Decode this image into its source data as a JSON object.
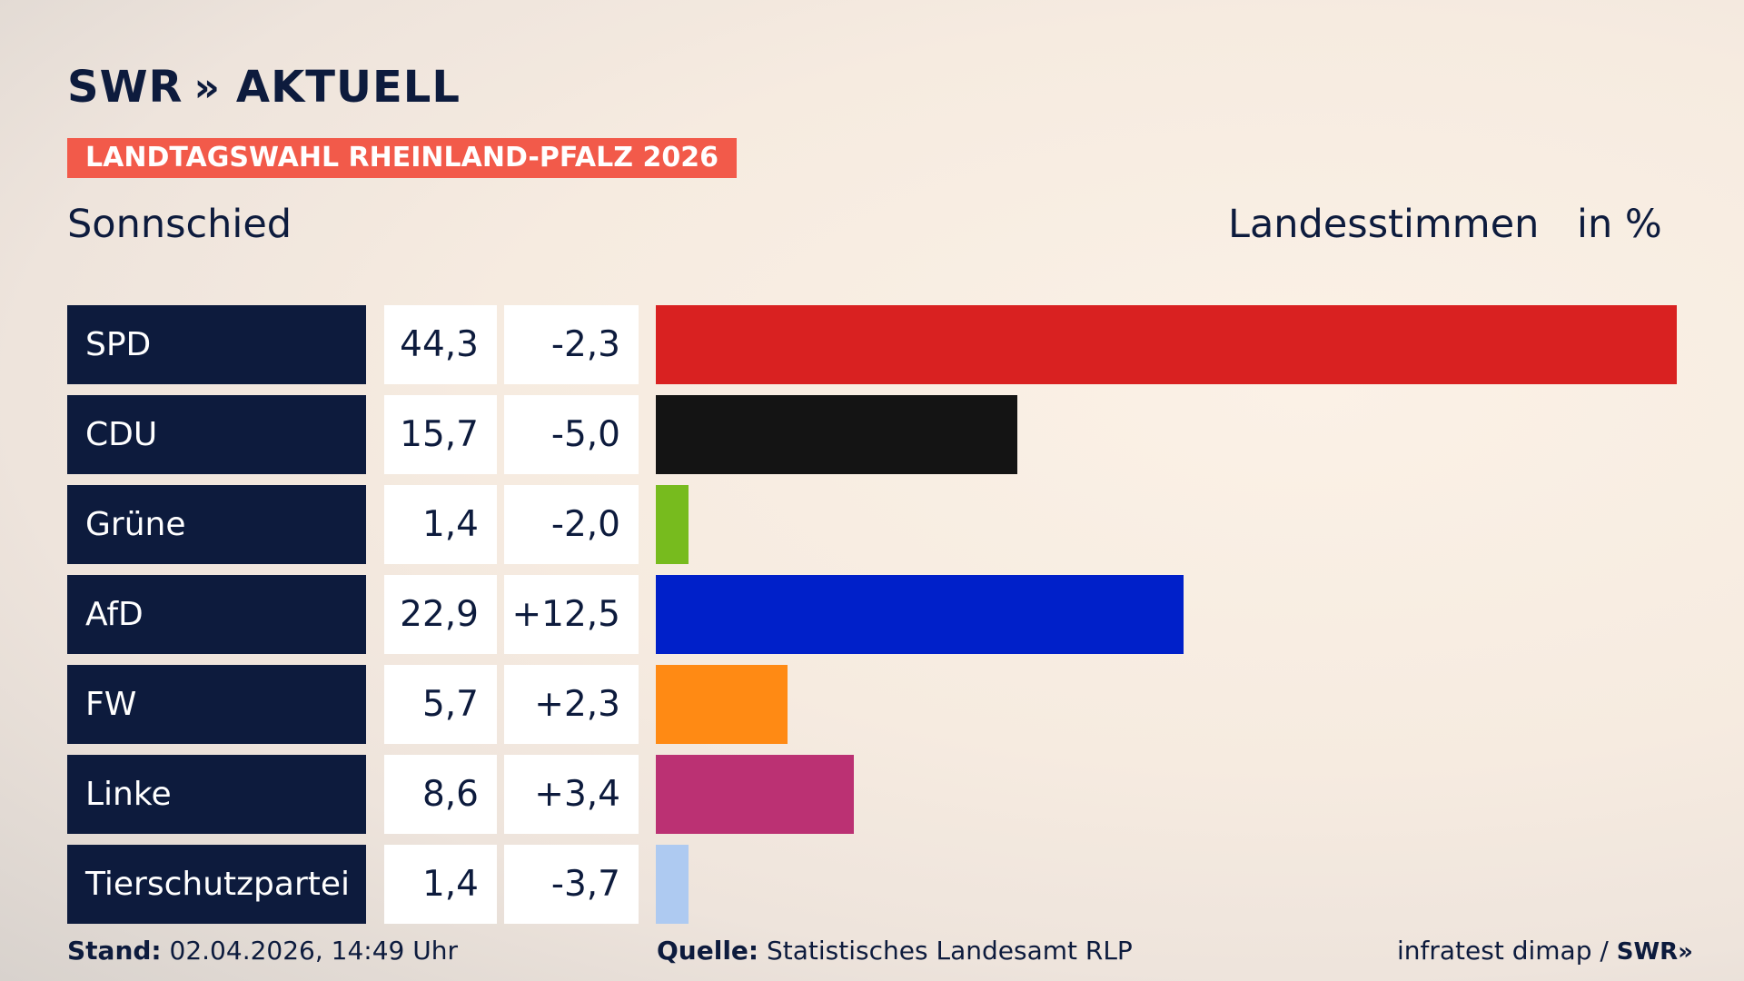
{
  "header": {
    "logo": "SWR",
    "logo_chevrons": "»",
    "logo_suffix": "AKTUELL",
    "kicker": "LANDTAGSWAHL RHEINLAND-PFALZ 2026",
    "place": "Sonnschied",
    "vote_type": "Landesstimmen",
    "unit": "in %"
  },
  "chart_data": {
    "type": "bar",
    "orientation": "horizontal",
    "categories": [
      "SPD",
      "CDU",
      "Grüne",
      "AfD",
      "FW",
      "Linke",
      "Tierschutzpartei"
    ],
    "series": [
      {
        "values": [
          44.3,
          15.7,
          1.4,
          22.9,
          5.7,
          8.6,
          1.4
        ],
        "changes": [
          -2.3,
          -5.0,
          -2.0,
          12.5,
          2.3,
          3.4,
          -3.7
        ]
      }
    ],
    "value_labels": [
      "44,3",
      "15,7",
      "1,4",
      "22,9",
      "5,7",
      "8,6",
      "1,4"
    ],
    "change_labels": [
      "-2,3",
      "-5,0",
      "-2,0",
      "+12,5",
      "+2,3",
      "+3,4",
      "-3,7"
    ],
    "colors": [
      "#d92121",
      "#141414",
      "#77bb1e",
      "#0020c9",
      "#ff8a14",
      "#bb3173",
      "#aecaf1"
    ],
    "xlim": [
      0,
      44.3
    ],
    "grid": false,
    "legend": "none"
  },
  "footer": {
    "stand_label": "Stand:",
    "stand_value": "02.04.2026, 14:49 Uhr",
    "source_label": "Quelle:",
    "source_value": "Statistisches Landesamt RLP",
    "credit": "infratest dimap /",
    "credit_logo": "SWR»"
  }
}
